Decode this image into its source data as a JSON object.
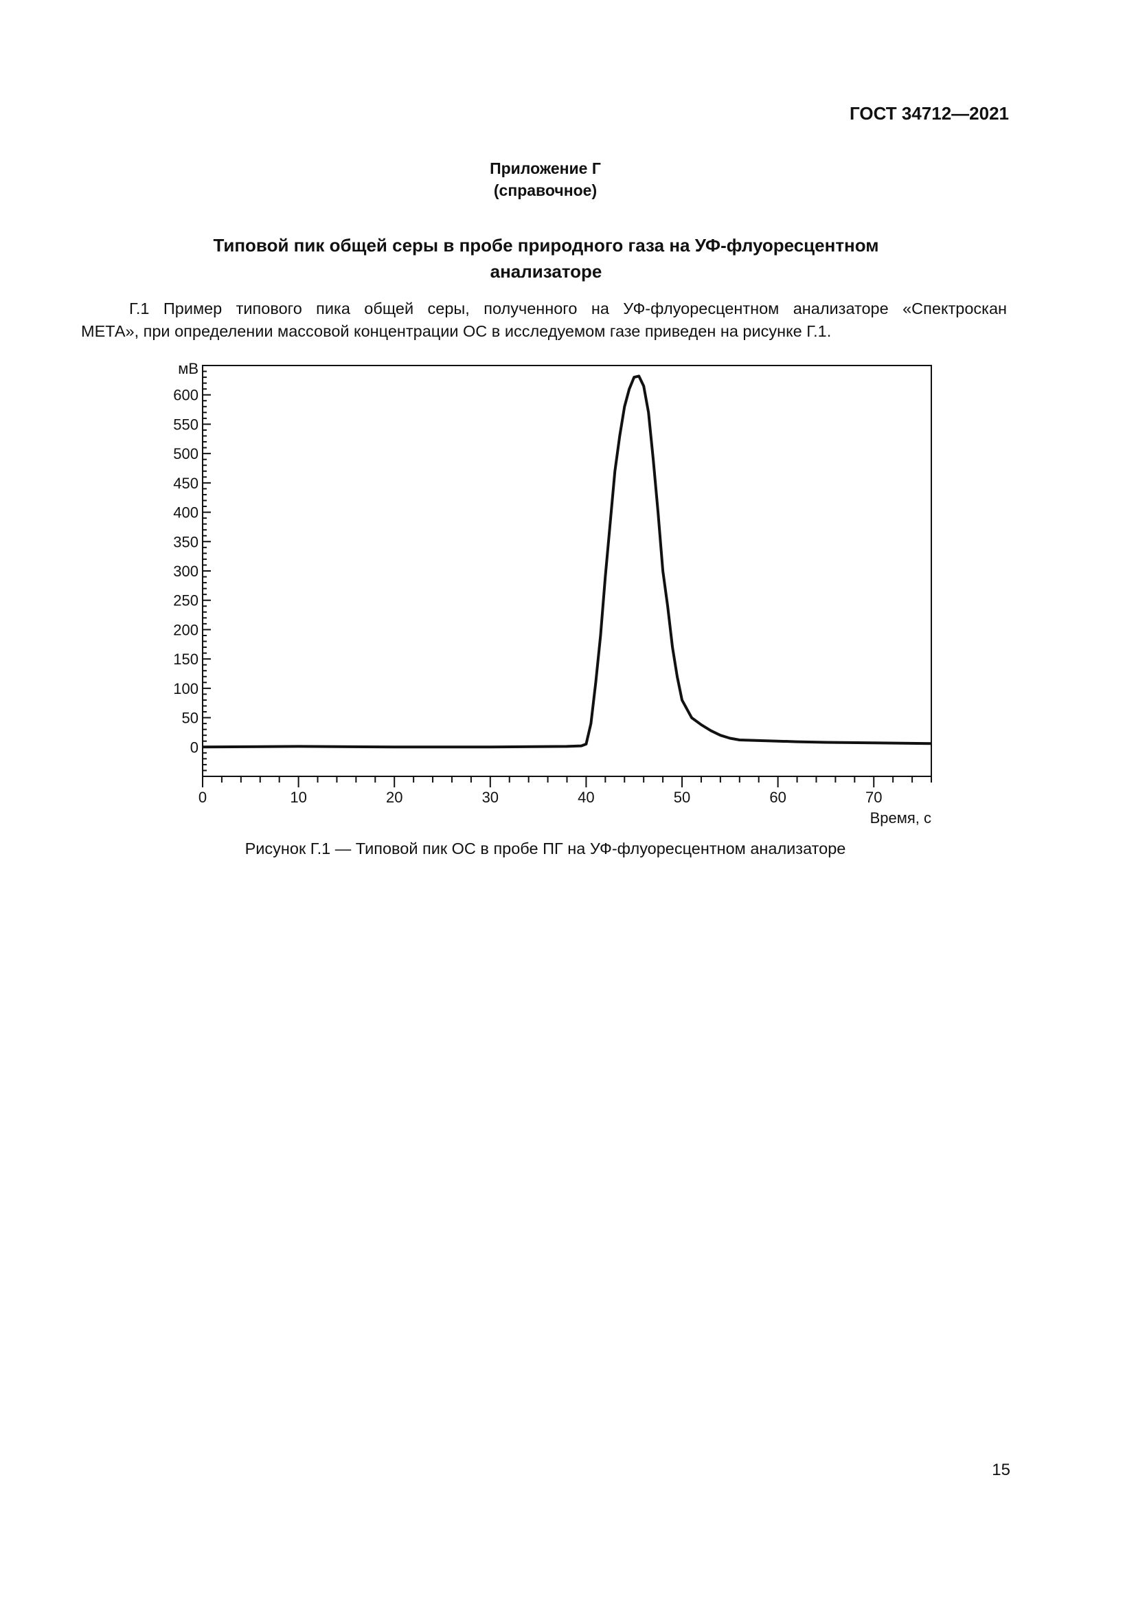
{
  "header": {
    "standard": "ГОСТ 34712—2021"
  },
  "appendix": {
    "title": "Приложение Г",
    "type": "(справочное)"
  },
  "section_title": "Типовой пик общей серы в пробе природного газа на УФ-флуоресцентном анализаторе",
  "paragraph": {
    "line1": "Г.1 Пример типового пика общей серы, полученного на УФ-флуоресцентном анализаторе «Спектроскан",
    "line2": "МЕТА», при определении массовой концентрации ОС в исследуемом газе приведен на рисунке Г.1."
  },
  "figure": {
    "caption": "Рисунок Г.1 — Типовой пик ОС в пробе ПГ на УФ-флуоресцентном анализаторе"
  },
  "page_number": "15",
  "chart_data": {
    "type": "line",
    "title": "",
    "ylabel": "мВ",
    "xlabel": "Время, с",
    "xlim": [
      0,
      76
    ],
    "ylim": [
      -50,
      650
    ],
    "xticks": [
      0,
      10,
      20,
      30,
      40,
      50,
      60,
      70
    ],
    "yticks": [
      0,
      50,
      100,
      150,
      200,
      250,
      300,
      350,
      400,
      450,
      500,
      550,
      600
    ],
    "grid": false,
    "series": [
      {
        "x": [
          0,
          10,
          20,
          30,
          38,
          39.5,
          40,
          40.5,
          41,
          41.5,
          42,
          42.5,
          43,
          43.5,
          44,
          44.5,
          45,
          45.5,
          46,
          46.5,
          47,
          47.5,
          48,
          48.5,
          49,
          49.5,
          50,
          51,
          52,
          53,
          54,
          55,
          56,
          58,
          60,
          62,
          65,
          70,
          76
        ],
        "y": [
          0,
          1,
          0,
          0,
          1,
          2,
          5,
          40,
          110,
          190,
          290,
          380,
          470,
          530,
          580,
          610,
          630,
          632,
          615,
          570,
          490,
          400,
          300,
          240,
          170,
          120,
          80,
          50,
          38,
          28,
          20,
          15,
          12,
          11,
          10,
          9,
          8,
          7,
          6
        ]
      }
    ]
  }
}
